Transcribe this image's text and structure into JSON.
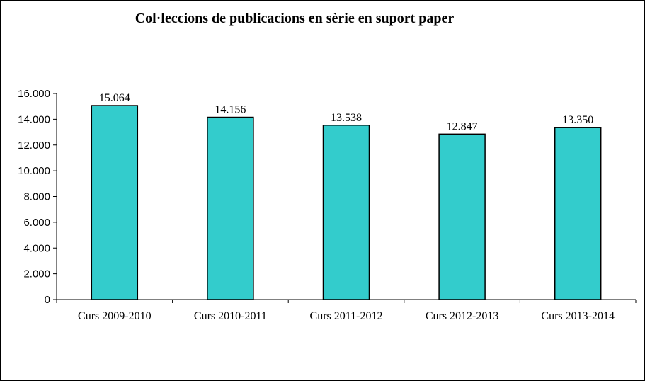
{
  "chart_data": {
    "type": "bar",
    "title": "Col·leccions de publicacions en sèrie en suport paper",
    "xlabel": "",
    "ylabel": "",
    "categories": [
      "Curs 2009-2010",
      "Curs 2010-2011",
      "Curs 2011-2012",
      "Curs 2012-2013",
      "Curs 2013-2014"
    ],
    "values": [
      15064,
      14156,
      13538,
      12847,
      13350
    ],
    "value_labels": [
      "15.064",
      "14.156",
      "13.538",
      "12.847",
      "13.350"
    ],
    "ylim": [
      0,
      16000
    ],
    "yticks": [
      0,
      2000,
      4000,
      6000,
      8000,
      10000,
      12000,
      14000,
      16000
    ],
    "ytick_labels": [
      "0",
      "2.000",
      "4.000",
      "6.000",
      "8.000",
      "10.000",
      "12.000",
      "14.000",
      "16.000"
    ],
    "grid": false,
    "legend": "none",
    "bar_color": "#33CCCC"
  }
}
